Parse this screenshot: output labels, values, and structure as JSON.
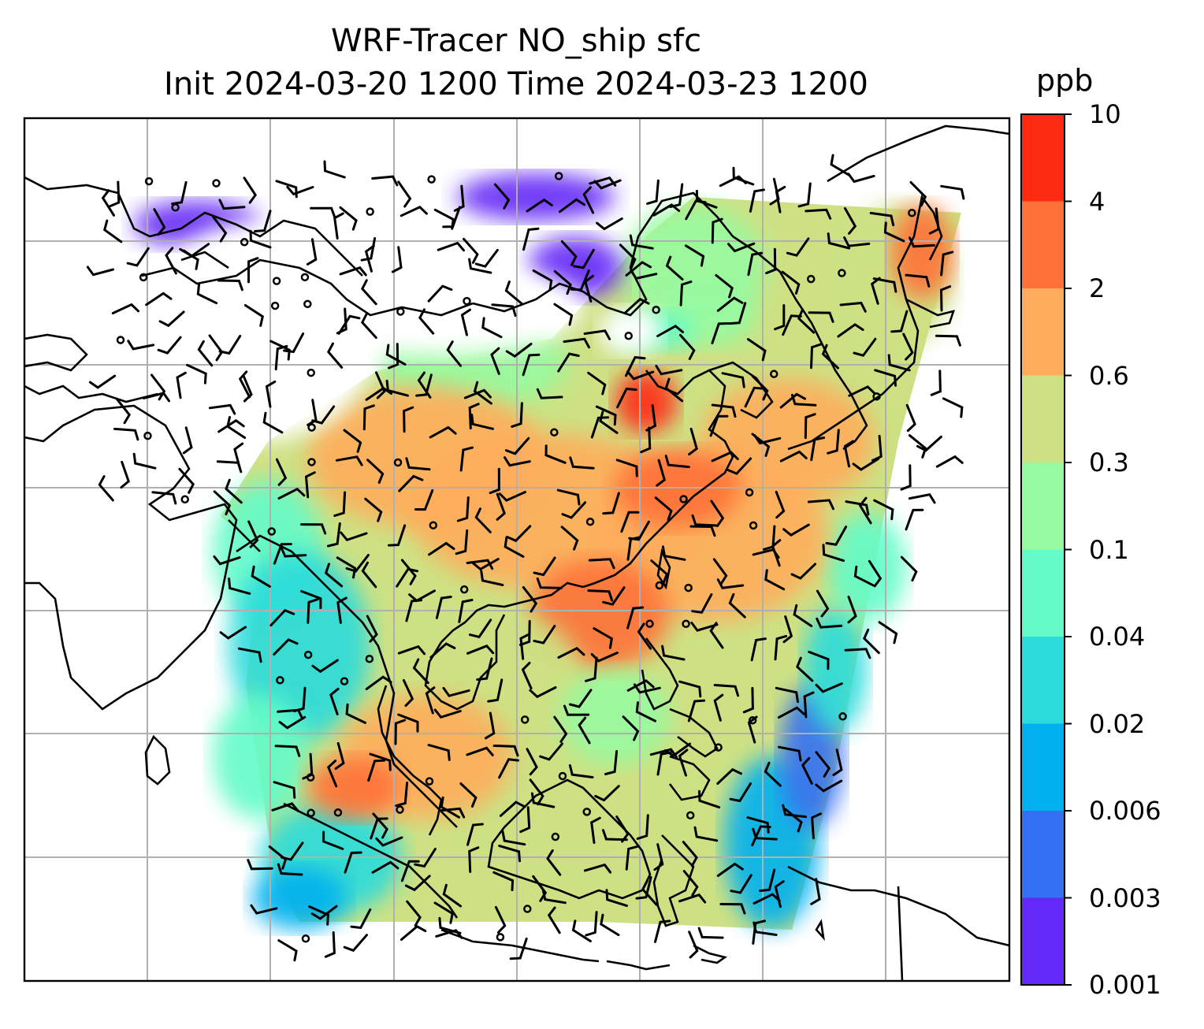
{
  "title": {
    "line1": "WRF-Tracer NO_ship sfc",
    "line2": "Init 2024-03-20 1200 Time 2024-03-23 1200"
  },
  "colorbar": {
    "unit": "ppb",
    "labels": [
      "10",
      "4",
      "2",
      "0.6",
      "0.3",
      "0.1",
      "0.04",
      "0.02",
      "0.006",
      "0.003",
      "0.001"
    ],
    "colors": [
      "#ff2a12",
      "#ff7139",
      "#ffad5c",
      "#cde184",
      "#97faa0",
      "#64fbc9",
      "#2cdbdb",
      "#00b0ef",
      "#3470f2",
      "#6428f7"
    ]
  },
  "map": {
    "colors": {
      "coastline": "#000000",
      "gridline": "#b0b0b0",
      "background": "#ffffff"
    },
    "wind_barbs": "black"
  }
}
